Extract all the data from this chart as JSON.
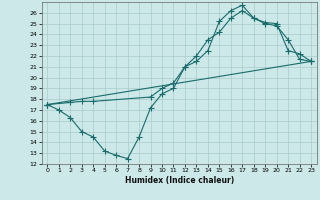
{
  "xlabel": "Humidex (Indice chaleur)",
  "bg_color": "#cce8e8",
  "line_color": "#1a6b6b",
  "grid_color": "#aacccc",
  "xlim": [
    -0.5,
    23.5
  ],
  "ylim": [
    12,
    27
  ],
  "yticks": [
    12,
    13,
    14,
    15,
    16,
    17,
    18,
    19,
    20,
    21,
    22,
    23,
    24,
    25,
    26
  ],
  "xticks": [
    0,
    1,
    2,
    3,
    4,
    5,
    6,
    7,
    8,
    9,
    10,
    11,
    12,
    13,
    14,
    15,
    16,
    17,
    18,
    19,
    20,
    21,
    22,
    23
  ],
  "line1_x": [
    0,
    1,
    2,
    3,
    4,
    5,
    6,
    7,
    8,
    9,
    10,
    11,
    12,
    13,
    14,
    15,
    16,
    17,
    18,
    19,
    20,
    21,
    22,
    23
  ],
  "line1_y": [
    17.5,
    17.0,
    16.3,
    15.0,
    14.5,
    13.2,
    12.8,
    12.5,
    14.5,
    17.2,
    18.5,
    19.0,
    21.0,
    21.5,
    22.5,
    25.2,
    26.2,
    26.7,
    25.5,
    25.0,
    24.8,
    23.5,
    21.7,
    21.5
  ],
  "line2_x": [
    0,
    2,
    3,
    4,
    9,
    10,
    11,
    12,
    13,
    14,
    15,
    16,
    17,
    18,
    19,
    20,
    21,
    22,
    23
  ],
  "line2_y": [
    17.5,
    17.7,
    17.8,
    17.8,
    18.2,
    19.0,
    19.5,
    21.0,
    22.0,
    23.5,
    24.2,
    25.5,
    26.2,
    25.5,
    25.1,
    25.0,
    22.5,
    22.2,
    21.5
  ],
  "line3_x": [
    0,
    23
  ],
  "line3_y": [
    17.5,
    21.5
  ],
  "marker": "+",
  "markersize": 4,
  "linewidth": 0.8
}
